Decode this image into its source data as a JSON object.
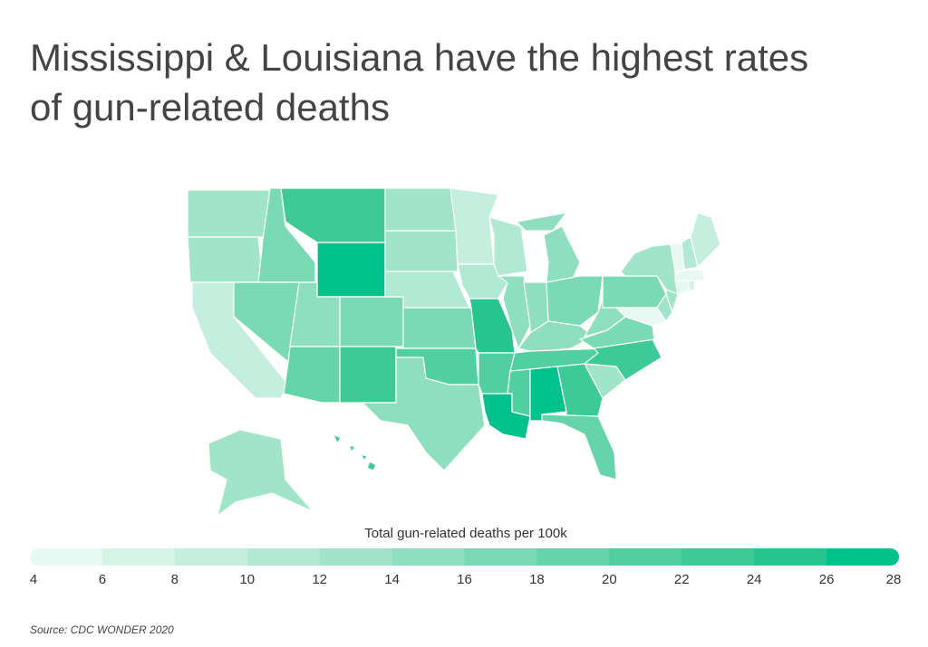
{
  "chart_data": {
    "type": "choropleth",
    "title": [
      "Mississippi & Louisiana have the highest rates",
      "of gun-related deaths"
    ],
    "legend_title": "Total gun-related deaths per 100k",
    "ticks": [
      4,
      6,
      8,
      10,
      12,
      14,
      16,
      18,
      20,
      22,
      24,
      26,
      28
    ],
    "colors": [
      "#e8f8f2",
      "#d6f3e8",
      "#c4eede",
      "#b2e9d4",
      "#a0e4ca",
      "#8ddfc0",
      "#7adab6",
      "#66d4ab",
      "#52cfa1",
      "#3dca97",
      "#26c590",
      "#00c08b"
    ],
    "values": [
      12,
      13,
      9,
      16,
      17,
      22,
      26,
      14,
      18,
      16,
      22,
      13,
      13,
      11,
      17,
      21,
      14,
      9,
      11,
      24,
      21,
      26,
      11,
      15,
      15,
      15,
      17,
      15,
      21,
      21,
      28,
      23,
      19,
      13,
      22,
      17,
      15,
      17,
      13,
      5,
      13,
      12,
      5,
      6,
      5,
      4,
      11,
      9,
      12,
      22,
      4
    ],
    "source": "Source:  CDC WONDER 2020"
  }
}
